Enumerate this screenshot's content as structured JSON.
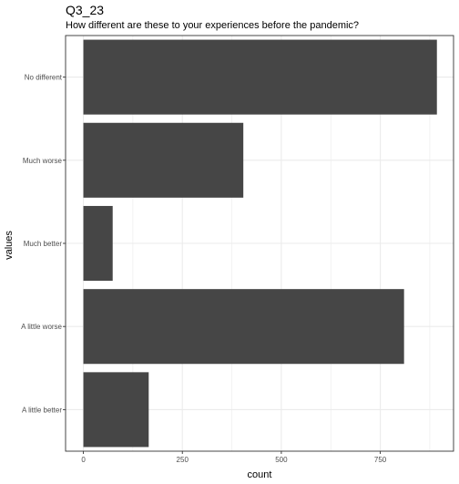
{
  "chart_data": {
    "type": "bar",
    "orientation": "horizontal",
    "title": "Q3_23",
    "subtitle": "How different are these to your experiences before the pandemic?",
    "xlabel": "count",
    "ylabel": "values",
    "categories": [
      "No different",
      "Much worse",
      "Much better",
      "A little worse",
      "A little better"
    ],
    "values": [
      893,
      404,
      74,
      810,
      165
    ],
    "xlim": [
      -45,
      935
    ],
    "xticks": [
      0,
      250,
      500,
      750
    ],
    "grid": true,
    "bar_color": "#464646",
    "panel_border_color": "#333333",
    "grid_color": "#ebebeb"
  }
}
